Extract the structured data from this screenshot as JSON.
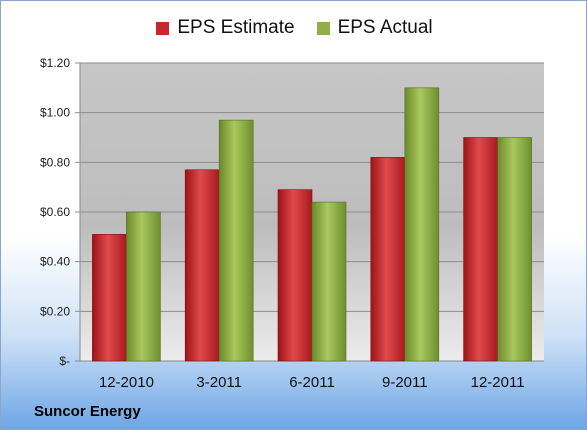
{
  "chart_data": {
    "type": "bar",
    "categories": [
      "12-2010",
      "3-2011",
      "6-2011",
      "9-2011",
      "12-2011"
    ],
    "series": [
      {
        "name": "EPS Estimate",
        "values": [
          0.51,
          0.77,
          0.69,
          0.82,
          0.9
        ],
        "color": "#c8282c"
      },
      {
        "name": "EPS Actual",
        "values": [
          0.6,
          0.97,
          0.64,
          1.1,
          0.9
        ],
        "color": "#8fae45"
      }
    ],
    "y_ticks": [
      {
        "value": 0,
        "label": "$-"
      },
      {
        "value": 0.2,
        "label": "$0.20"
      },
      {
        "value": 0.4,
        "label": "$0.40"
      },
      {
        "value": 0.6,
        "label": "$0.60"
      },
      {
        "value": 0.8,
        "label": "$0.80"
      },
      {
        "value": 1.0,
        "label": "$1.00"
      },
      {
        "value": 1.2,
        "label": "$1.20"
      }
    ],
    "ylim": [
      0,
      1.2
    ],
    "grid": true,
    "legend_position": "top"
  },
  "company": "Suncor Energy"
}
